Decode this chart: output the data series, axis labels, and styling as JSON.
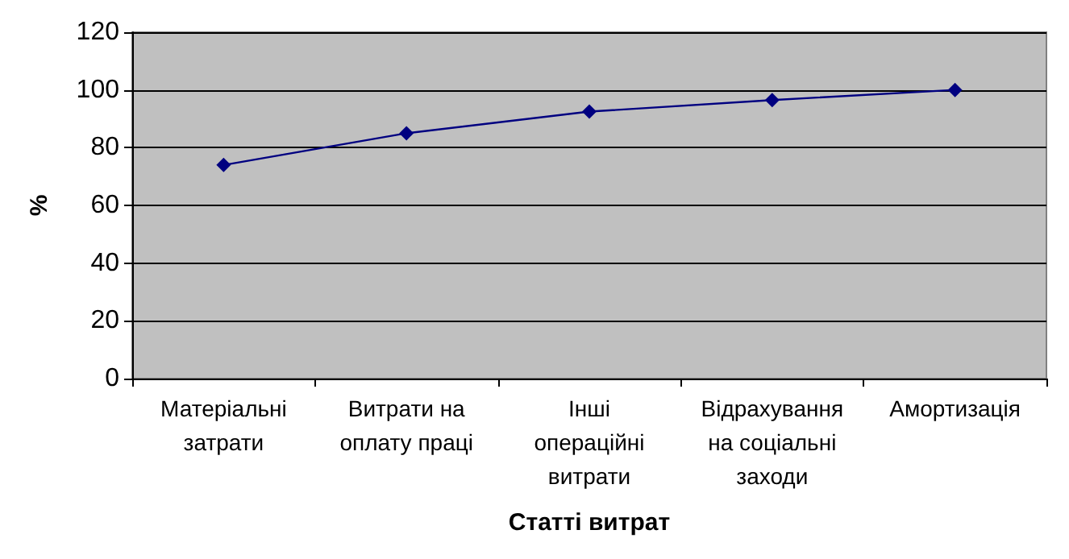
{
  "chart_data": {
    "type": "line",
    "xlabel": "Статті витрат",
    "ylabel": "%",
    "categories": [
      "Матеріальні затрати",
      "Витрати на оплату праці",
      "Інші операційні витрати",
      "Відрахування на соціальні заходи",
      "Амортизація"
    ],
    "series": [
      {
        "color": "#000080",
        "values": [
          74,
          85,
          92.5,
          96.5,
          100
        ]
      }
    ],
    "ylim": [
      0,
      120
    ],
    "yticks": [
      0,
      20,
      40,
      60,
      80,
      100,
      120
    ],
    "grid": "y",
    "marker": "diamond",
    "line_style": "solid"
  }
}
